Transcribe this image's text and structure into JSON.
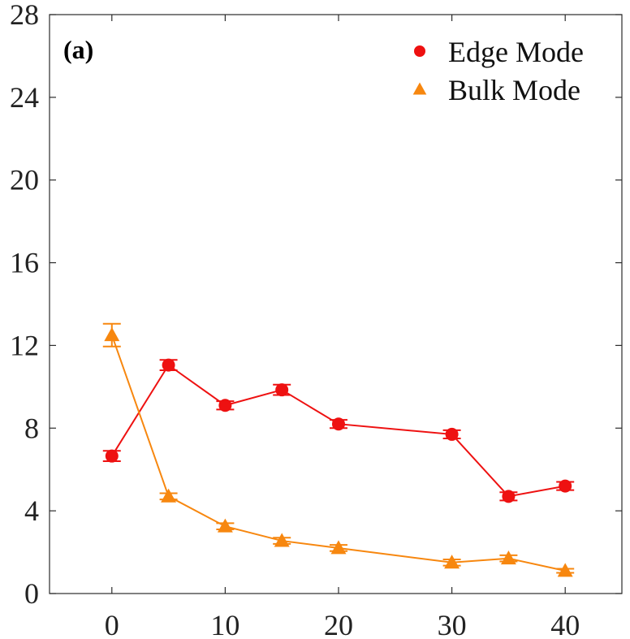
{
  "panel_label": "(a)",
  "chart_data": {
    "type": "line",
    "xlim": [
      -5.5,
      45
    ],
    "ylim": [
      0,
      28
    ],
    "x_ticks": [
      0,
      10,
      20,
      30,
      40
    ],
    "y_ticks": [
      0,
      4,
      8,
      12,
      16,
      20,
      24,
      28
    ],
    "grid": false,
    "legend_position": "top-right",
    "xlabel": "",
    "ylabel": "",
    "title": "",
    "series": [
      {
        "name": "Edge Mode",
        "color": "#ee1111",
        "marker": "circle",
        "x": [
          0,
          5,
          10,
          15,
          20,
          30,
          35,
          40
        ],
        "y": [
          6.65,
          11.05,
          9.1,
          9.85,
          8.2,
          7.7,
          4.7,
          5.2
        ],
        "err": [
          0.25,
          0.25,
          0.2,
          0.25,
          0.2,
          0.2,
          0.2,
          0.2
        ]
      },
      {
        "name": "Bulk Mode",
        "color": "#f7870f",
        "marker": "triangle",
        "x": [
          0,
          5,
          10,
          15,
          20,
          30,
          35,
          40
        ],
        "y": [
          12.5,
          4.7,
          3.25,
          2.55,
          2.2,
          1.5,
          1.7,
          1.1
        ],
        "err": [
          0.55,
          0.15,
          0.15,
          0.15,
          0.15,
          0.15,
          0.15,
          0.1
        ]
      }
    ]
  }
}
